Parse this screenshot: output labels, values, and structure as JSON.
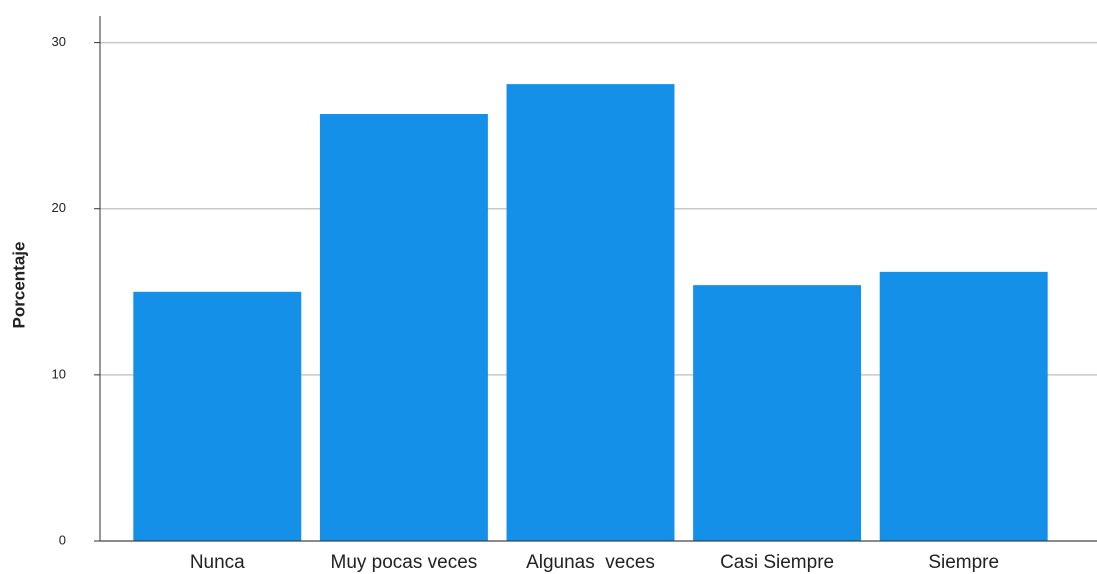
{
  "chart_data": {
    "type": "bar",
    "y_label": "Porcentaje",
    "categories": [
      "Nunca",
      "Muy pocas veces",
      "Algunas  veces",
      "Casi Siempre",
      "Siempre"
    ],
    "values": [
      15.0,
      25.7,
      27.5,
      15.4,
      16.2
    ],
    "color": "#1490e8",
    "ylim": [
      0,
      31.6
    ],
    "yticks": [
      0,
      10,
      20,
      30
    ],
    "grid": true
  }
}
